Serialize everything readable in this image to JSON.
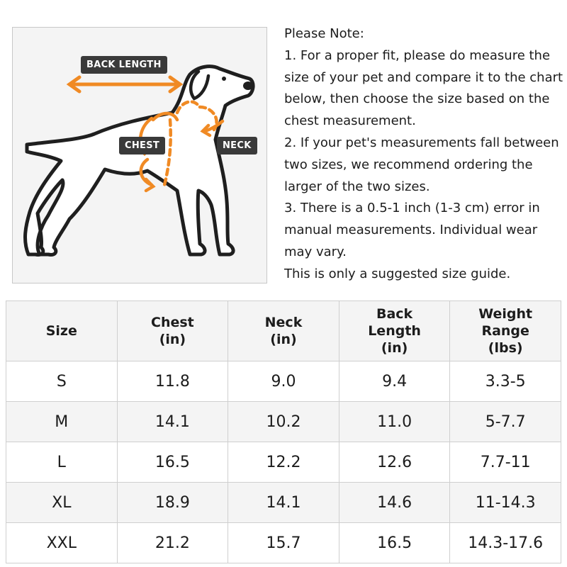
{
  "diagram": {
    "labels": {
      "back_length": "BACK LENGTH",
      "chest": "CHEST",
      "neck": "NECK"
    },
    "accent_color": "#f08a24",
    "icon": "dog-outline-icon"
  },
  "notes": {
    "heading": "Please Note:",
    "lines": [
      "1. For a proper fit, please do measure the",
      "size of your pet and compare it to the chart",
      "below, then choose the size based on the",
      "chest measurement.",
      "2. If your pet's measurements fall between",
      "two sizes, we recommend ordering the",
      "larger of the two sizes.",
      "3. There is a 0.5-1 inch (1-3 cm) error in",
      "manual measurements. Individual wear",
      "may vary.",
      "This is only a suggested size guide."
    ]
  },
  "table": {
    "headers": [
      [
        "Size"
      ],
      [
        "Chest",
        "(in)"
      ],
      [
        "Neck",
        "(in)"
      ],
      [
        "Back",
        "Length",
        "(in)"
      ],
      [
        "Weight",
        "Range",
        "(lbs)"
      ]
    ],
    "rows": [
      [
        "S",
        "11.8",
        "9.0",
        "9.4",
        "3.3-5"
      ],
      [
        "M",
        "14.1",
        "10.2",
        "11.0",
        "5-7.7"
      ],
      [
        "L",
        "16.5",
        "12.2",
        "12.6",
        "7.7-11"
      ],
      [
        "XL",
        "18.9",
        "14.1",
        "14.6",
        "11-14.3"
      ],
      [
        "XXL",
        "21.2",
        "15.7",
        "16.5",
        "14.3-17.6"
      ]
    ]
  }
}
